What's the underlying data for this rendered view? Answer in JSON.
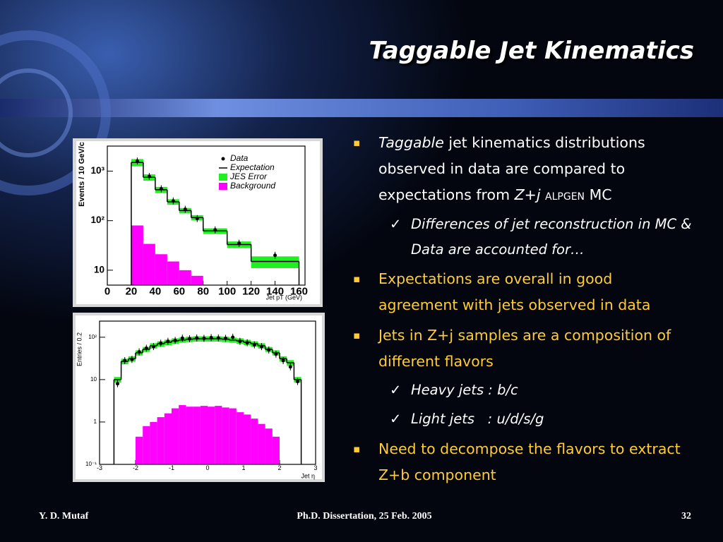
{
  "title": "Taggable Jet Kinematics",
  "bullets": [
    {
      "runs": [
        "Taggable",
        "jet kinematics distributions observed in data are compared to expectations from",
        "Z+j",
        "ALPGEN",
        "MC"
      ],
      "subs": [
        "Differences of jet reconstruction in MC & Data are accounted for…"
      ]
    },
    {
      "text": "Expectations are overall in good agreement with jets observed in data"
    },
    {
      "text": "Jets in Z+j samples are a composition of different flavors",
      "subs": [
        "Heavy jets : b/c",
        "Light jets   : u/d/s/g"
      ]
    },
    {
      "text": "Need to decompose the flavors to extract Z+b component"
    }
  ],
  "footer": {
    "author": "Y. D. Mutaf",
    "event": "Ph.D. Dissertation, 25 Feb. 2005",
    "page": "32"
  },
  "chart_data": [
    {
      "type": "histogram",
      "bins": [
        20,
        30,
        40,
        50,
        60,
        70,
        80,
        100,
        120,
        160
      ],
      "x": [
        25,
        35,
        45,
        55,
        65,
        75,
        90,
        110,
        140
      ],
      "series": [
        {
          "name": "Data",
          "style": "points",
          "color": "#000000",
          "values": [
            1600,
            780,
            440,
            250,
            170,
            110,
            65,
            35,
            20
          ]
        },
        {
          "name": "Expectation",
          "style": "step",
          "color": "#000000",
          "values": [
            1500,
            750,
            420,
            240,
            160,
            115,
            62,
            33,
            15
          ]
        },
        {
          "name": "JES Error",
          "style": "band",
          "color": "#22ee22",
          "values": [
            250,
            110,
            60,
            30,
            20,
            14,
            8,
            5,
            4
          ]
        },
        {
          "name": "Background",
          "style": "filled",
          "color": "#ff00ff",
          "values": [
            80,
            34,
            21,
            15,
            10,
            7.7,
            null,
            null,
            null
          ]
        }
      ],
      "xlim": [
        0,
        165
      ],
      "xticks": [
        0,
        20,
        40,
        60,
        80,
        100,
        120,
        140,
        160
      ],
      "ylim": [
        5,
        3200
      ],
      "ylog": true,
      "yticks": [
        10,
        {
          "value": 100,
          "label": "10²"
        },
        {
          "value": 1000,
          "label": "10³"
        }
      ],
      "ylabel": "Events / 10 GeV/c",
      "xlabel": "Jet pT (GeV)",
      "legend": "upper right"
    },
    {
      "type": "histogram",
      "bins": [
        -2.6,
        -2.4,
        -2.2,
        -2,
        -1.8,
        -1.6,
        -1.4,
        -1.2,
        -1,
        -0.8,
        -0.6,
        -0.4,
        -0.2,
        0,
        0.2,
        0.4,
        0.6,
        0.8,
        1,
        1.2,
        1.4,
        1.6,
        1.8,
        2,
        2.2,
        2.4,
        2.6
      ],
      "x": [
        -2.5,
        -2.3,
        -2.1,
        -1.9,
        -1.7,
        -1.5,
        -1.3,
        -1.1,
        -0.9,
        -0.7,
        -0.5,
        -0.3,
        -0.1,
        0.1,
        0.3,
        0.5,
        0.7,
        0.9,
        1.1,
        1.3,
        1.5,
        1.7,
        1.9,
        2.1,
        2.3,
        2.5
      ],
      "series": [
        {
          "style": "points",
          "color": "#000000",
          "values": [
            8,
            28,
            30,
            45,
            55,
            60,
            72,
            80,
            84,
            95,
            92,
            96,
            94,
            98,
            96,
            94,
            100,
            80,
            74,
            66,
            60,
            50,
            40,
            28,
            20,
            9
          ]
        },
        {
          "style": "step",
          "color": "#000000",
          "values": [
            10,
            27,
            31,
            43,
            52,
            63,
            70,
            76,
            82,
            86,
            90,
            92,
            92,
            92,
            92,
            90,
            86,
            82,
            76,
            70,
            63,
            52,
            43,
            31,
            25,
            10
          ]
        },
        {
          "style": "band",
          "color": "#22ee22",
          "values": [
            1.5,
            4,
            4.5,
            6,
            7,
            9,
            10,
            11,
            12,
            12,
            13,
            13,
            13,
            13,
            13,
            13,
            12,
            12,
            11,
            10,
            9,
            7,
            6,
            4.5,
            3.8,
            1.5
          ]
        },
        {
          "style": "filled",
          "color": "#ff00ff",
          "values": [
            null,
            null,
            null,
            0.45,
            0.8,
            1,
            1.3,
            1.6,
            2.1,
            2.5,
            2.3,
            2.3,
            2.4,
            2.3,
            2.4,
            2.2,
            2.1,
            1.7,
            1.5,
            1.2,
            0.9,
            0.7,
            0.45,
            null,
            null,
            null
          ]
        }
      ],
      "xlim": [
        -3,
        3
      ],
      "xticks": [
        -3,
        -2,
        -1,
        0,
        1,
        2,
        3
      ],
      "ylim": [
        0.1,
        240
      ],
      "ylog": true,
      "yticks": [
        {
          "value": 0.1,
          "label": "10⁻¹"
        },
        1,
        10,
        {
          "value": 100,
          "label": "10²"
        }
      ],
      "ylabel": "Entries / 0.2",
      "xlabel": "Jet η"
    }
  ]
}
